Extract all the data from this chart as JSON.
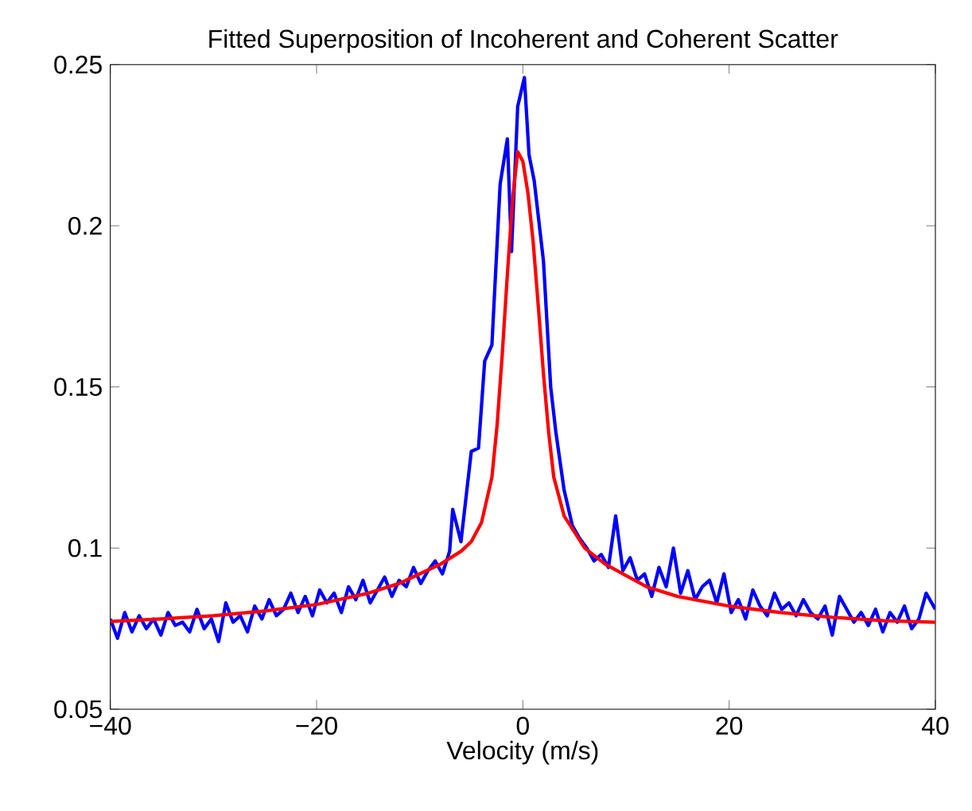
{
  "chart_data": {
    "type": "line",
    "title": "Fitted Superposition of Incoherent and Coherent Scatter",
    "xlabel": "Velocity (m/s)",
    "xlim": [
      -40,
      40
    ],
    "ylim": [
      0.05,
      0.25
    ],
    "xticks": [
      {
        "value": -40,
        "label": "−40"
      },
      {
        "value": -20,
        "label": "−20"
      },
      0,
      20,
      40
    ],
    "yticks": [
      0.05,
      0.1,
      0.15,
      0.2,
      0.25
    ],
    "grid": false,
    "marker": "none",
    "line_style": "solid",
    "series": [
      {
        "color": "#0000ff",
        "x": [
          -40,
          -39.3,
          -38.6,
          -37.9,
          -37.2,
          -36.5,
          -35.8,
          -35.1,
          -34.4,
          -33.7,
          -33,
          -32.3,
          -31.6,
          -30.9,
          -30.2,
          -29.5,
          -28.8,
          -28.1,
          -27.4,
          -26.7,
          -26,
          -25.3,
          -24.6,
          -23.9,
          -23.2,
          -22.5,
          -21.8,
          -21.1,
          -20.4,
          -19.7,
          -19,
          -18.3,
          -17.6,
          -16.9,
          -16.2,
          -15.5,
          -14.8,
          -14.1,
          -13.4,
          -12.7,
          -12,
          -11.3,
          -10.6,
          -9.9,
          -9.2,
          -8.5,
          -7.8,
          -7.1,
          -6.8,
          -6,
          -5,
          -4.3,
          -3.7,
          -3,
          -2.2,
          -1.5,
          -1.1,
          -0.5,
          0.15,
          0.6,
          1.1,
          2,
          2.7,
          3.2,
          4,
          4.8,
          5.5,
          6.2,
          6.9,
          7.6,
          8.3,
          9,
          9.7,
          10.4,
          11.1,
          11.8,
          12.5,
          13.2,
          13.9,
          14.6,
          15.3,
          16,
          16.7,
          17.4,
          18.1,
          18.8,
          19.5,
          20.2,
          20.9,
          21.6,
          22.3,
          23,
          23.7,
          24.4,
          25.1,
          25.8,
          26.5,
          27.2,
          27.9,
          28.6,
          29.3,
          30,
          30.7,
          31.4,
          32.1,
          32.8,
          33.5,
          34.2,
          34.9,
          35.6,
          36.3,
          37,
          37.7,
          38.4,
          39.1,
          40
        ],
        "values": [
          0.078,
          0.072,
          0.08,
          0.074,
          0.079,
          0.075,
          0.078,
          0.073,
          0.08,
          0.076,
          0.077,
          0.074,
          0.081,
          0.075,
          0.078,
          0.071,
          0.083,
          0.077,
          0.079,
          0.074,
          0.082,
          0.078,
          0.084,
          0.079,
          0.081,
          0.086,
          0.08,
          0.085,
          0.079,
          0.087,
          0.083,
          0.086,
          0.08,
          0.088,
          0.084,
          0.09,
          0.083,
          0.087,
          0.091,
          0.085,
          0.09,
          0.088,
          0.094,
          0.089,
          0.093,
          0.096,
          0.092,
          0.099,
          0.112,
          0.102,
          0.13,
          0.131,
          0.158,
          0.163,
          0.213,
          0.227,
          0.192,
          0.237,
          0.246,
          0.222,
          0.214,
          0.189,
          0.15,
          0.136,
          0.118,
          0.107,
          0.103,
          0.1,
          0.096,
          0.098,
          0.094,
          0.11,
          0.093,
          0.097,
          0.09,
          0.092,
          0.085,
          0.094,
          0.088,
          0.1,
          0.086,
          0.093,
          0.084,
          0.088,
          0.09,
          0.083,
          0.092,
          0.08,
          0.084,
          0.078,
          0.087,
          0.082,
          0.079,
          0.086,
          0.081,
          0.083,
          0.079,
          0.084,
          0.08,
          0.078,
          0.082,
          0.073,
          0.085,
          0.081,
          0.077,
          0.08,
          0.076,
          0.081,
          0.074,
          0.08,
          0.077,
          0.082,
          0.075,
          0.078,
          0.086,
          0.081
        ]
      },
      {
        "color": "#ff0000",
        "x": [
          -40,
          -35,
          -30,
          -25,
          -20,
          -15,
          -12,
          -10,
          -8,
          -6,
          -5,
          -4,
          -3,
          -2.5,
          -2,
          -1.5,
          -1,
          -0.5,
          0,
          0.5,
          1,
          1.5,
          2,
          2.5,
          3,
          4,
          5,
          6,
          8,
          10,
          12,
          15,
          20,
          25,
          30,
          35,
          40
        ],
        "values": [
          0.0772,
          0.078,
          0.079,
          0.0805,
          0.0825,
          0.086,
          0.089,
          0.092,
          0.095,
          0.099,
          0.102,
          0.108,
          0.122,
          0.138,
          0.16,
          0.185,
          0.208,
          0.223,
          0.22,
          0.21,
          0.195,
          0.175,
          0.154,
          0.136,
          0.122,
          0.11,
          0.105,
          0.1,
          0.095,
          0.0915,
          0.088,
          0.085,
          0.082,
          0.08,
          0.0785,
          0.0775,
          0.077
        ]
      }
    ]
  }
}
